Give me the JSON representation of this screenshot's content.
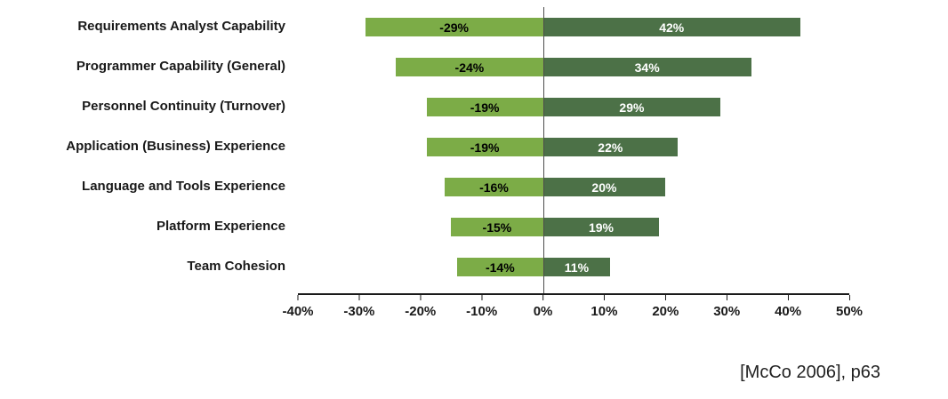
{
  "chart_data": {
    "type": "bar",
    "orientation": "horizontal-diverging",
    "title": "",
    "xlabel": "",
    "ylabel": "",
    "xlim": [
      -40,
      50
    ],
    "grid": false,
    "categories": [
      "Requirements Analyst Capability",
      "Programmer Capability (General)",
      "Personnel Continuity (Turnover)",
      "Application (Business) Experience",
      "Language and Tools Experience",
      "Platform Experience",
      "Team Cohesion"
    ],
    "series": [
      {
        "name": "negative",
        "values": [
          -29,
          -24,
          -19,
          -19,
          -16,
          -15,
          -14
        ]
      },
      {
        "name": "positive",
        "values": [
          42,
          34,
          29,
          22,
          20,
          19,
          11
        ]
      }
    ],
    "negative_labels": [
      "-29%",
      "-24%",
      "-19%",
      "-19%",
      "-16%",
      "-15%",
      "-14%"
    ],
    "positive_labels": [
      "42%",
      "34%",
      "29%",
      "22%",
      "20%",
      "19%",
      "11%"
    ],
    "x_ticks": [
      "-40%",
      "-30%",
      "-20%",
      "-10%",
      "0%",
      "10%",
      "20%",
      "30%",
      "40%",
      "50%"
    ],
    "colors": {
      "negative_bar": "#7CAC47",
      "positive_bar": "#4C7147",
      "negative_label_text": "#000000",
      "positive_label_text": "#ffffff"
    }
  },
  "citation": "[McCo 2006], p63"
}
